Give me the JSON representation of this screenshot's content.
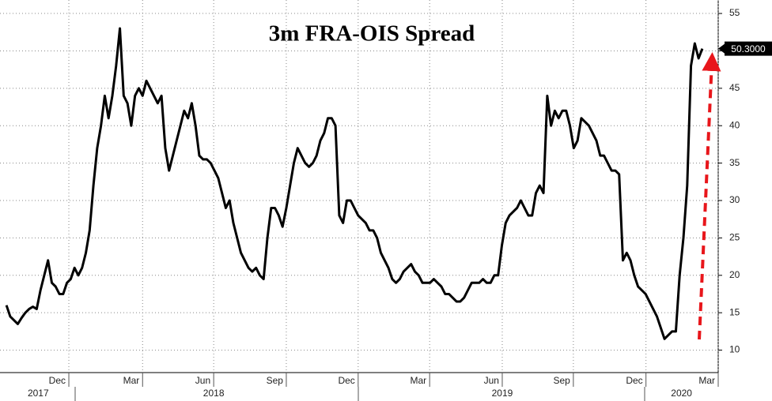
{
  "chart_data": {
    "type": "line",
    "title": "3m FRA-OIS Spread",
    "color": "#000000",
    "grid": true,
    "values": [
      16,
      14.5,
      14,
      13.5,
      14.3,
      15,
      15.5,
      15.8,
      15.5,
      18,
      20,
      22,
      19,
      18.5,
      17.5,
      17.5,
      19,
      19.5,
      21,
      20,
      21,
      23,
      26,
      32,
      37,
      40,
      44,
      41,
      44,
      48,
      53,
      44,
      43,
      40,
      44,
      45,
      44,
      46,
      45,
      44,
      43,
      44,
      37,
      34,
      36,
      38,
      40,
      42,
      41,
      43,
      40,
      36,
      35.5,
      35.5,
      35,
      34,
      33,
      31,
      29,
      30,
      27,
      25,
      23,
      22,
      21,
      20.5,
      21,
      20,
      19.5,
      25,
      29,
      29,
      28,
      26.5,
      29,
      32,
      35,
      37,
      36,
      35,
      34.5,
      35,
      36,
      38,
      39,
      41,
      41,
      40,
      28,
      27,
      30,
      30,
      29,
      28,
      27.5,
      27,
      26,
      26,
      25,
      23,
      22,
      21,
      19.5,
      19,
      19.5,
      20.5,
      21,
      21.5,
      20.5,
      20,
      19,
      19,
      19,
      19.5,
      19,
      18.5,
      17.5,
      17.5,
      17,
      16.5,
      16.5,
      17,
      18,
      19,
      19,
      19,
      19.5,
      19,
      19,
      20,
      20,
      24,
      27,
      28,
      28.5,
      29,
      30,
      29,
      28,
      28,
      31,
      32,
      31,
      44,
      40,
      42,
      41,
      42,
      42,
      40,
      37,
      38,
      41,
      40.5,
      40,
      39,
      38,
      36,
      36,
      35,
      34,
      34,
      33.5,
      22,
      23,
      22,
      20,
      18.5,
      18,
      17.5,
      16.5,
      15.5,
      14.5,
      13,
      11.5,
      12,
      12.5,
      12.5,
      20,
      25,
      32,
      48,
      51,
      49,
      50.3
    ],
    "last_label": {
      "value": 50.3,
      "label": "50.3000"
    },
    "xlim": [
      -1.7,
      188.2
    ],
    "xticks": [
      {
        "value": 16.5,
        "label": "Dec"
      },
      {
        "value": 36,
        "label": "Mar"
      },
      {
        "value": 54.8,
        "label": "Jun"
      },
      {
        "value": 74,
        "label": "Sep"
      },
      {
        "value": 93,
        "label": "Dec"
      },
      {
        "value": 111.9,
        "label": "Mar"
      },
      {
        "value": 131.1,
        "label": "Jun"
      },
      {
        "value": 149.9,
        "label": "Sep"
      },
      {
        "value": 169.1,
        "label": "Dec"
      },
      {
        "value": 188.2,
        "label": "Mar"
      }
    ],
    "year_ticks": [
      {
        "value": 8.4,
        "label": "2017"
      },
      {
        "value": 54.8,
        "label": "2018"
      },
      {
        "value": 131.1,
        "label": "2019"
      },
      {
        "value": 178.5,
        "label": "2020"
      }
    ],
    "ylim": [
      7,
      56.8
    ],
    "yticks": [
      10,
      15,
      20,
      25,
      30,
      35,
      40,
      45,
      50,
      55
    ]
  }
}
